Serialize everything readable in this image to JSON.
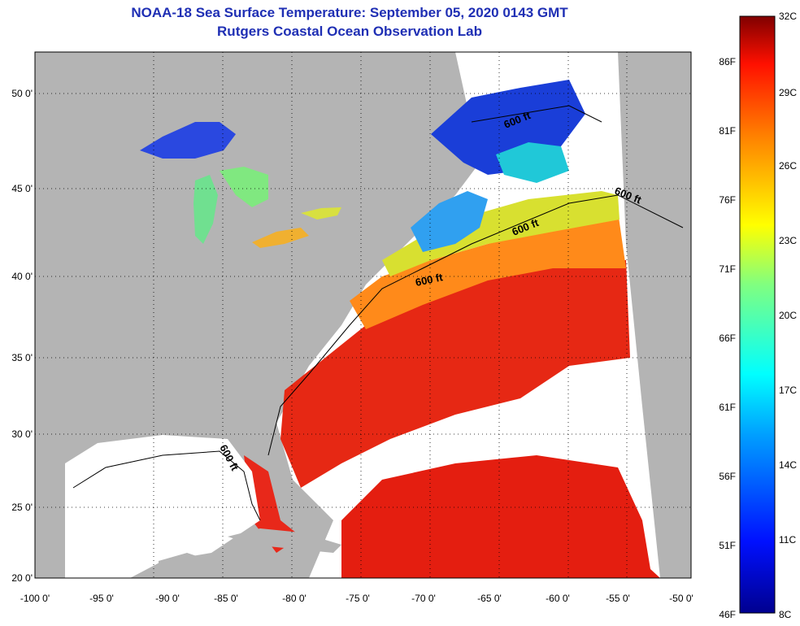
{
  "title": {
    "line1": "NOAA-18 Sea Surface Temperature:  September 05, 2020 0143 GMT",
    "line2": "Rutgers Coastal Ocean Observation Lab"
  },
  "axes": {
    "x_ticks": [
      "-100 0'",
      "-95 0'",
      "-90 0'",
      "-85 0'",
      "-80 0'",
      "-75 0'",
      "-70 0'",
      "-65 0'",
      "-60 0'",
      "-55 0'",
      "-50 0'"
    ],
    "y_ticks": [
      "50 0'",
      "45 0'",
      "40 0'",
      "35 0'",
      "30 0'",
      "25 0'",
      "20 0'"
    ]
  },
  "contour_labels": [
    "600 ft",
    "600 ft",
    "600 ft",
    "600 ft",
    "600 ft"
  ],
  "colorbar": {
    "celsius": [
      "32C",
      "29C",
      "26C",
      "23C",
      "20C",
      "17C",
      "14C",
      "11C",
      "8C"
    ],
    "fahrenheit": [
      "86F",
      "81F",
      "76F",
      "71F",
      "66F",
      "61F",
      "56F",
      "51F",
      "46F"
    ]
  },
  "colors": {
    "land": "#b4b4b4",
    "cloud": "#ffffff",
    "title": "#1f2fb4"
  }
}
